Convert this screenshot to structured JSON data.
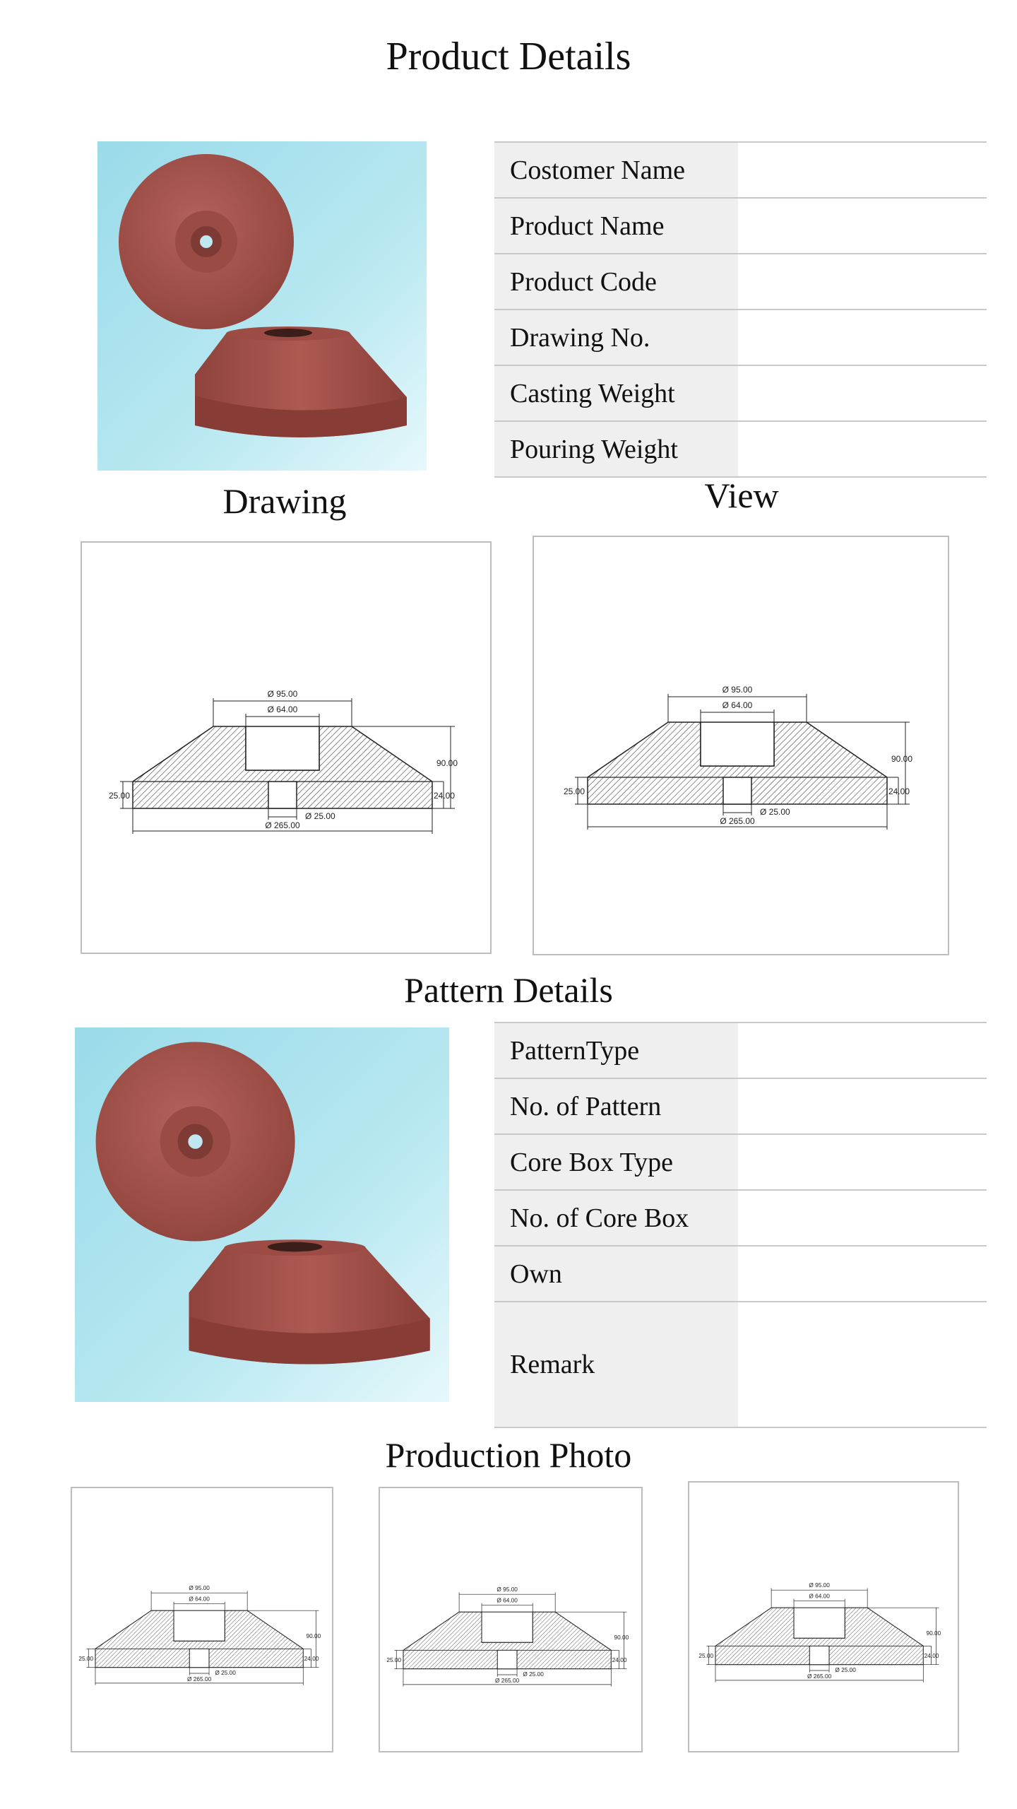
{
  "page": {
    "title": "Product Details",
    "drawing_heading": "Drawing",
    "view_heading": "View",
    "pattern_heading": "Pattern Details",
    "production_heading": "Production Photo"
  },
  "product_details": {
    "rows": [
      {
        "label": "Costomer Name",
        "value": ""
      },
      {
        "label": "Product Name",
        "value": ""
      },
      {
        "label": "Product Code",
        "value": ""
      },
      {
        "label": "Drawing No.",
        "value": ""
      },
      {
        "label": "Casting Weight",
        "value": ""
      },
      {
        "label": "Pouring Weight",
        "value": ""
      }
    ]
  },
  "pattern_details": {
    "rows": [
      {
        "label": "PatternType",
        "value": ""
      },
      {
        "label": "No. of Pattern",
        "value": ""
      },
      {
        "label": "Core Box Type",
        "value": ""
      },
      {
        "label": "No. of Core Box",
        "value": ""
      },
      {
        "label": "Own",
        "value": ""
      },
      {
        "label": "Remark",
        "value": ""
      }
    ]
  },
  "drawing_dimensions": {
    "top_outer": "Ø 95.00",
    "top_inner": "Ø 64.00",
    "height": "90.00",
    "left_edge": "25.00",
    "right_edge": "24.00",
    "bottom_hole": "Ø 25.00",
    "base": "Ø 265.00"
  },
  "colors": {
    "photo_background": "#9fdcea",
    "casting": "#a4544c",
    "table_label_bg": "#efefef",
    "table_border": "#c9c9c9"
  }
}
